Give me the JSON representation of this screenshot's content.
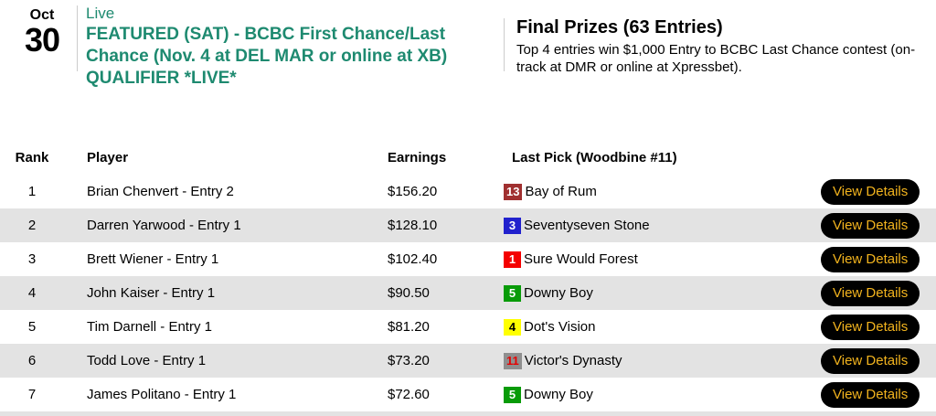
{
  "header": {
    "date_month": "Oct",
    "date_day": "30",
    "live_label": "Live",
    "event_title": "FEATURED (SAT) - BCBC First Chance/Last Chance (Nov. 4 at DEL MAR or online at XB) QUALIFIER *LIVE*",
    "prizes_title": "Final Prizes (63 Entries)",
    "prizes_description": "Top 4 entries win $1,000 Entry to BCBC Last Chance contest (on-track at DMR or online at Xpressbet)."
  },
  "table": {
    "columns": {
      "rank": "Rank",
      "player": "Player",
      "earnings": "Earnings",
      "last_pick": "Last Pick (Woodbine #11)"
    },
    "view_details_label": "View Details",
    "rows": [
      {
        "rank": "1",
        "player": "Brian Chenvert - Entry 2",
        "earnings": "$156.20",
        "pick_number": "13",
        "pick_horse": "Bay of Rum",
        "badge_bg": "#a03030",
        "badge_fg": "#ffffff"
      },
      {
        "rank": "2",
        "player": "Darren Yarwood - Entry 1",
        "earnings": "$128.10",
        "pick_number": "3",
        "pick_horse": "Seventyseven Stone",
        "badge_bg": "#2121cd",
        "badge_fg": "#ffffff"
      },
      {
        "rank": "3",
        "player": "Brett Wiener - Entry 1",
        "earnings": "$102.40",
        "pick_number": "1",
        "pick_horse": "Sure Would Forest",
        "badge_bg": "#f40000",
        "badge_fg": "#ffffff"
      },
      {
        "rank": "4",
        "player": "John Kaiser - Entry 1",
        "earnings": "$90.50",
        "pick_number": "5",
        "pick_horse": "Downy Boy",
        "badge_bg": "#089b08",
        "badge_fg": "#ffffff"
      },
      {
        "rank": "5",
        "player": "Tim Darnell - Entry 1",
        "earnings": "$81.20",
        "pick_number": "4",
        "pick_horse": "Dot's Vision",
        "badge_bg": "#ffff00",
        "badge_fg": "#000000"
      },
      {
        "rank": "6",
        "player": "Todd Love - Entry 1",
        "earnings": "$73.20",
        "pick_number": "11",
        "pick_horse": "Victor's Dynasty",
        "badge_bg": "#8f8f8f",
        "badge_fg": "#e60000"
      },
      {
        "rank": "7",
        "player": "James Politano - Entry 1",
        "earnings": "$72.60",
        "pick_number": "5",
        "pick_horse": "Downy Boy",
        "badge_bg": "#089b08",
        "badge_fg": "#ffffff"
      }
    ]
  },
  "colors": {
    "accent_green": "#1e8a70",
    "divider": "#cccccc",
    "row_stripe": "#e3e3e3",
    "button_bg": "#000000",
    "button_text": "#f3b41e"
  }
}
